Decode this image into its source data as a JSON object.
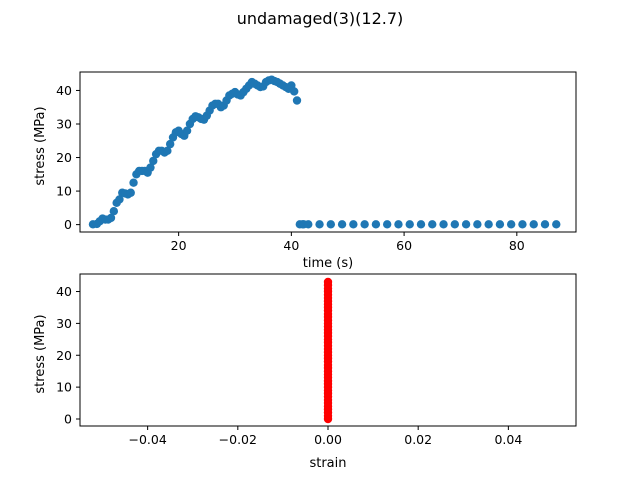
{
  "figure": {
    "suptitle": "undamaged(3)(12.7)"
  },
  "colors": {
    "series_top": "#1f77b4",
    "series_bottom": "#ff0000",
    "axes": "#000000"
  },
  "chart_data": [
    {
      "type": "scatter",
      "xlabel": "time (s)",
      "ylabel": "stress (MPa)",
      "xlim": [
        2.5,
        90.5
      ],
      "ylim": [
        -2.2,
        45.5
      ],
      "xticks": [
        20,
        40,
        60,
        80
      ],
      "yticks": [
        0,
        10,
        20,
        30,
        40
      ],
      "grid": false,
      "series": [
        {
          "x": [
            4.8,
            5.5,
            6.0,
            6.5,
            7.0,
            7.5,
            8.0,
            8.5,
            9.0,
            9.5,
            10.0,
            10.5,
            11.0,
            11.5,
            12.0,
            12.5,
            13.0,
            13.5,
            14.0,
            14.5,
            15.0,
            15.5,
            16.0,
            16.5,
            17.0,
            17.5,
            18.0,
            18.5,
            19.0,
            19.5,
            20.0,
            20.5,
            21.0,
            21.5,
            22.0,
            22.5,
            23.0,
            23.5,
            24.0,
            24.5,
            25.0,
            25.5,
            26.0,
            26.5,
            27.0,
            27.5,
            28.0,
            28.5,
            29.0,
            29.5,
            30.0,
            30.5,
            31.0,
            31.5,
            32.0,
            32.5,
            33.0,
            33.5,
            34.0,
            34.5,
            35.0,
            35.5,
            36.0,
            36.5,
            37.0,
            37.5,
            38.0,
            38.5,
            39.0,
            39.5,
            40.0,
            40.5,
            41.0,
            41.5,
            42.0,
            42.2,
            43.0,
            45.0,
            47.0,
            49.0,
            51.0,
            53.0,
            55.0,
            57.0,
            59.0,
            61.0,
            63.0,
            65.0,
            67.0,
            69.0,
            71.0,
            73.0,
            75.0,
            77.0,
            79.0,
            81.0,
            83.0,
            85.0,
            87.0
          ],
          "y": [
            0.1,
            0.2,
            1.0,
            1.8,
            1.5,
            1.5,
            2.0,
            4.0,
            6.5,
            7.5,
            9.5,
            9.3,
            9.0,
            9.5,
            12.5,
            15.0,
            16.0,
            16.0,
            16.0,
            15.5,
            17.0,
            19.0,
            21.0,
            22.0,
            22.0,
            21.5,
            22.0,
            24.0,
            26.0,
            27.5,
            28.0,
            27.0,
            26.5,
            28.0,
            30.0,
            31.5,
            32.3,
            32.0,
            31.5,
            31.3,
            32.5,
            34.0,
            35.5,
            36.0,
            36.0,
            35.0,
            35.5,
            37.0,
            38.5,
            39.0,
            39.5,
            38.8,
            38.5,
            39.5,
            40.5,
            41.5,
            42.5,
            42.0,
            41.5,
            41.0,
            41.2,
            42.5,
            43.0,
            43.2,
            42.8,
            42.5,
            42.0,
            41.5,
            41.0,
            40.5,
            41.5,
            39.7,
            37.0,
            0.1,
            0.1,
            0.1,
            0.1,
            0.1,
            0.1,
            0.1,
            0.1,
            0.1,
            0.1,
            0.1,
            0.1,
            0.1,
            0.1,
            0.1,
            0.1,
            0.1,
            0.1,
            0.1,
            0.1,
            0.1,
            0.1,
            0.1,
            0.1,
            0.1,
            0.1
          ]
        }
      ]
    },
    {
      "type": "scatter",
      "xlabel": "strain",
      "ylabel": "stress (MPa)",
      "xlim": [
        -0.055,
        0.055
      ],
      "ylim": [
        -2.2,
        45.5
      ],
      "xticks": [
        -0.04,
        -0.02,
        0.0,
        0.02,
        0.04
      ],
      "xtick_labels": [
        "−0.04",
        "−0.02",
        "0.00",
        "0.02",
        "0.04"
      ],
      "yticks": [
        0,
        10,
        20,
        30,
        40
      ],
      "grid": false,
      "series": [
        {
          "x": [
            0,
            0,
            0,
            0,
            0,
            0,
            0,
            0,
            0,
            0,
            0,
            0,
            0,
            0,
            0,
            0,
            0,
            0,
            0,
            0,
            0,
            0,
            0,
            0,
            0,
            0,
            0,
            0,
            0,
            0,
            0,
            0,
            0,
            0,
            0,
            0,
            0,
            0,
            0,
            0,
            0,
            0,
            0,
            0
          ],
          "y": [
            0,
            1,
            2,
            3,
            4,
            5,
            6,
            7,
            8,
            9,
            10,
            11,
            12,
            13,
            14,
            15,
            16,
            17,
            18,
            19,
            20,
            21,
            22,
            23,
            24,
            25,
            26,
            27,
            28,
            29,
            30,
            31,
            32,
            33,
            34,
            35,
            36,
            37,
            38,
            39,
            40,
            41,
            42,
            43
          ]
        }
      ]
    }
  ]
}
